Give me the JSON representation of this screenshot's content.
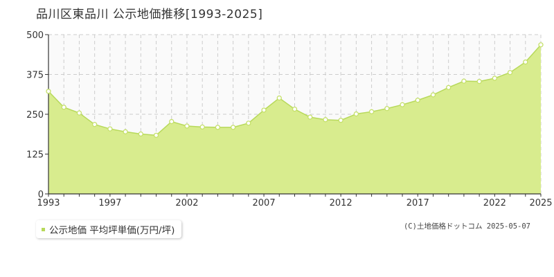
{
  "title": "品川区東品川 公示地価推移[1993-2025]",
  "colors": {
    "fill": "#d8ec8e",
    "line": "#b7d95a",
    "marker": "#c5e06a",
    "grid": "#cccccc",
    "plot_bg": "#fafafa"
  },
  "chart_data": {
    "type": "area",
    "title": "品川区東品川 公示地価推移[1993-2025]",
    "xlabel": "",
    "ylabel": "",
    "xlim": [
      1993,
      2025
    ],
    "ylim": [
      0,
      500
    ],
    "yticks": [
      0,
      125,
      250,
      375,
      500
    ],
    "ytick_labels": [
      "0",
      "125",
      "250",
      "375",
      "500"
    ],
    "xticks": [
      1993,
      1997,
      2002,
      2007,
      2012,
      2017,
      2022,
      2025
    ],
    "xtick_labels": [
      "1993",
      "1997",
      "2002",
      "2007",
      "2012",
      "2017",
      "2022",
      "2025"
    ],
    "grid": true,
    "legend": "bottom-left",
    "series": [
      {
        "name": "公示地価 平均坪単価(万円/坪)",
        "x": [
          1993,
          1994,
          1995,
          1996,
          1997,
          1998,
          1999,
          2000,
          2001,
          2002,
          2003,
          2004,
          2005,
          2006,
          2007,
          2008,
          2009,
          2010,
          2011,
          2012,
          2013,
          2014,
          2015,
          2016,
          2017,
          2018,
          2019,
          2020,
          2021,
          2022,
          2023,
          2024,
          2025
        ],
        "values": [
          322,
          272,
          254,
          218,
          204,
          195,
          188,
          184,
          227,
          213,
          210,
          209,
          209,
          222,
          263,
          301,
          266,
          241,
          233,
          231,
          251,
          258,
          268,
          280,
          294,
          311,
          334,
          354,
          353,
          363,
          381,
          414,
          468
        ]
      }
    ]
  },
  "legend": {
    "label": "公示地価 平均坪単価(万円/坪)"
  },
  "credit": "(C)土地価格ドットコム 2025-05-07"
}
